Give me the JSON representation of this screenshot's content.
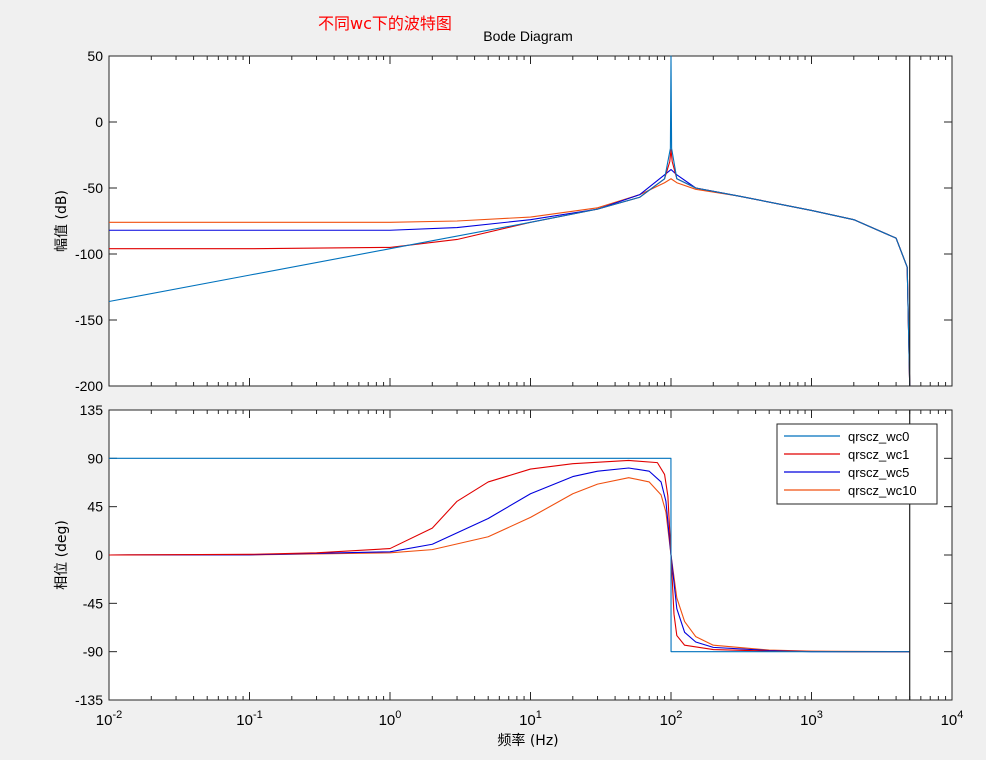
{
  "annotation": "不同wc下的波特图",
  "colors": {
    "qrscz_wc0": "#0072bd",
    "qrscz_wc1": "#e00000",
    "qrscz_wc5": "#0000dd",
    "qrscz_wc10": "#f05010",
    "vertical_marker": "#222222",
    "background": "#f0f0f0"
  },
  "chart_data": {
    "type": "line",
    "title": "Bode Diagram",
    "x_scale": "log",
    "xlabel": "频率  (Hz)",
    "xlim": [
      0.01,
      10000
    ],
    "xticks": [
      {
        "base": "10",
        "exp": "-2",
        "value": 0.01
      },
      {
        "base": "10",
        "exp": "-1",
        "value": 0.1
      },
      {
        "base": "10",
        "exp": "0",
        "value": 1
      },
      {
        "base": "10",
        "exp": "1",
        "value": 10
      },
      {
        "base": "10",
        "exp": "2",
        "value": 100
      },
      {
        "base": "10",
        "exp": "3",
        "value": 1000
      },
      {
        "base": "10",
        "exp": "4",
        "value": 10000
      }
    ],
    "grid": false,
    "legend_position": "top-right of phase axes",
    "vertical_line_x": 5000,
    "magnitude": {
      "ylabel": "幅值 (dB)",
      "ylim": [
        -200,
        50
      ],
      "yticks": [
        "50",
        "0",
        "-50",
        "-100",
        "-150",
        "-200"
      ],
      "ytick_values": [
        50,
        0,
        -50,
        -100,
        -150,
        -200
      ],
      "series": [
        {
          "name": "qrscz_wc0",
          "x": [
            0.01,
            0.1,
            1,
            10,
            30,
            60,
            90,
            99,
            100,
            101,
            110,
            150,
            300,
            1000,
            2000,
            4000,
            4800,
            5000
          ],
          "y": [
            -136,
            -116,
            -96,
            -76,
            -66,
            -57,
            -43,
            -20,
            50,
            -20,
            -43,
            -50,
            -56,
            -67,
            -74,
            -88,
            -110,
            -200
          ]
        },
        {
          "name": "qrscz_wc1",
          "x": [
            0.01,
            0.1,
            1,
            3,
            10,
            30,
            60,
            90,
            98,
            100,
            102,
            110,
            150,
            300,
            1000,
            2000,
            4000,
            4800,
            5000
          ],
          "y": [
            -96,
            -96,
            -95,
            -89,
            -76,
            -66,
            -57,
            -43,
            -30,
            -21,
            -30,
            -43,
            -50,
            -56,
            -67,
            -74,
            -88,
            -110,
            -200
          ]
        },
        {
          "name": "qrscz_wc5",
          "x": [
            0.01,
            0.1,
            1,
            3,
            10,
            30,
            60,
            90,
            100,
            110,
            150,
            300,
            1000,
            2000,
            4000,
            4800,
            5000
          ],
          "y": [
            -82,
            -82,
            -82,
            -80,
            -74,
            -66,
            -55,
            -40,
            -36,
            -40,
            -50,
            -56,
            -67,
            -74,
            -88,
            -110,
            -200
          ]
        },
        {
          "name": "qrscz_wc10",
          "x": [
            0.01,
            0.1,
            1,
            3,
            10,
            30,
            60,
            90,
            100,
            110,
            150,
            300,
            1000,
            2000,
            4000,
            4800,
            5000
          ],
          "y": [
            -76,
            -76,
            -76,
            -75,
            -72,
            -65,
            -55,
            -46,
            -43,
            -46,
            -51,
            -56,
            -67,
            -74,
            -88,
            -110,
            -200
          ]
        }
      ]
    },
    "phase": {
      "ylabel": "相位 (deg)",
      "ylim": [
        -135,
        135
      ],
      "yticks": [
        "135",
        "90",
        "45",
        "0",
        "-45",
        "-90",
        "-135"
      ],
      "ytick_values": [
        135,
        90,
        45,
        0,
        -45,
        -90,
        -135
      ],
      "series": [
        {
          "name": "qrscz_wc0",
          "x": [
            0.01,
            99.9,
            100.1,
            5000
          ],
          "y": [
            90,
            90,
            -90,
            -90
          ]
        },
        {
          "name": "qrscz_wc1",
          "x": [
            0.01,
            0.1,
            0.3,
            1,
            2,
            3,
            5,
            10,
            20,
            50,
            80,
            90,
            95,
            100,
            105,
            110,
            125,
            200,
            500,
            2000,
            5000
          ],
          "y": [
            0,
            0.6,
            2,
            6,
            25,
            50,
            68,
            80,
            85,
            88,
            86,
            75,
            55,
            0,
            -55,
            -75,
            -84,
            -88,
            -89.5,
            -90,
            -90
          ]
        },
        {
          "name": "qrscz_wc5",
          "x": [
            0.01,
            0.1,
            1,
            2,
            5,
            10,
            20,
            30,
            50,
            70,
            85,
            92,
            100,
            110,
            125,
            150,
            200,
            500,
            1000,
            5000
          ],
          "y": [
            0,
            0.2,
            3,
            10,
            34,
            57,
            73,
            78,
            81,
            78,
            68,
            50,
            0,
            -50,
            -72,
            -81,
            -86,
            -89,
            -90,
            -90
          ]
        },
        {
          "name": "qrscz_wc10",
          "x": [
            0.01,
            0.1,
            1,
            2,
            5,
            10,
            20,
            30,
            50,
            70,
            85,
            92,
            100,
            110,
            125,
            150,
            200,
            500,
            1000,
            5000
          ],
          "y": [
            0,
            0.1,
            2,
            5,
            17,
            35,
            57,
            66,
            72,
            68,
            56,
            40,
            0,
            -40,
            -62,
            -76,
            -84,
            -88.5,
            -89.5,
            -90
          ]
        }
      ]
    }
  }
}
